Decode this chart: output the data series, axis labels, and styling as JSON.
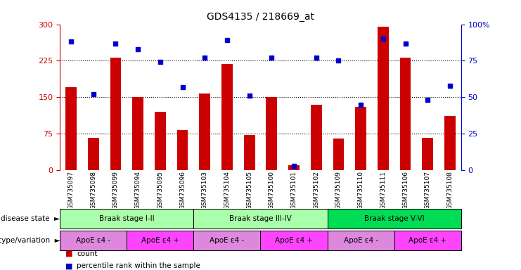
{
  "title": "GDS4135 / 218669_at",
  "samples": [
    "GSM735097",
    "GSM735098",
    "GSM735099",
    "GSM735094",
    "GSM735095",
    "GSM735096",
    "GSM735103",
    "GSM735104",
    "GSM735105",
    "GSM735100",
    "GSM735101",
    "GSM735102",
    "GSM735109",
    "GSM735110",
    "GSM735111",
    "GSM735106",
    "GSM735107",
    "GSM735108"
  ],
  "counts": [
    170,
    67,
    232,
    150,
    120,
    83,
    158,
    218,
    72,
    150,
    10,
    135,
    65,
    130,
    295,
    232,
    67,
    112
  ],
  "percentiles": [
    88,
    52,
    87,
    83,
    74,
    57,
    77,
    89,
    51,
    77,
    3,
    77,
    75,
    45,
    90,
    87,
    48,
    58
  ],
  "ylim_left": [
    0,
    300
  ],
  "ylim_right": [
    0,
    100
  ],
  "yticks_left": [
    0,
    75,
    150,
    225,
    300
  ],
  "yticks_right": [
    0,
    25,
    50,
    75,
    100
  ],
  "bar_color": "#CC0000",
  "dot_color": "#0000CC",
  "disease_stages": [
    {
      "label": "Braak stage I-II",
      "start": 0,
      "end": 6,
      "color": "#AAFFAA"
    },
    {
      "label": "Braak stage III-IV",
      "start": 6,
      "end": 12,
      "color": "#AAFFAA"
    },
    {
      "label": "Braak stage V-VI",
      "start": 12,
      "end": 18,
      "color": "#00DD55"
    }
  ],
  "genotype_groups": [
    {
      "label": "ApoE ε4 -",
      "start": 0,
      "end": 3,
      "color": "#DD88DD"
    },
    {
      "label": "ApoE ε4 +",
      "start": 3,
      "end": 6,
      "color": "#FF44FF"
    },
    {
      "label": "ApoE ε4 -",
      "start": 6,
      "end": 9,
      "color": "#DD88DD"
    },
    {
      "label": "ApoE ε4 +",
      "start": 9,
      "end": 12,
      "color": "#FF44FF"
    },
    {
      "label": "ApoE ε4 -",
      "start": 12,
      "end": 15,
      "color": "#DD88DD"
    },
    {
      "label": "ApoE ε4 +",
      "start": 15,
      "end": 18,
      "color": "#FF44FF"
    }
  ],
  "background_color": "#ffffff"
}
